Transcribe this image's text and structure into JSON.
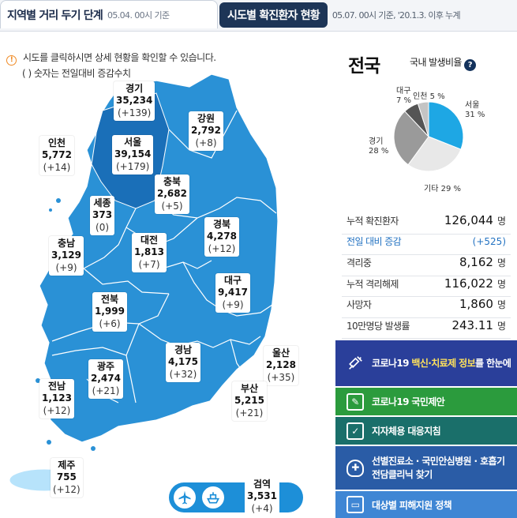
{
  "header": {
    "tab1_title": "지역별 거리 두기 단계",
    "tab1_sub": "05.04. 00시 기준",
    "tab2_title": "시도별 확진환자 현황",
    "tab2_sub": "05.07. 00시 기준, '20.1.3. 이후 누계"
  },
  "map": {
    "notice_icon": "!",
    "notice": "시도를 클릭하시면 상세 현황을 확인할 수 있습니다.",
    "notice2": "( ) 숫자는 전일대비 증감수치",
    "regions": {
      "gyeonggi": {
        "name": "경기",
        "value": "35,234",
        "delta": "(+139)"
      },
      "gangwon": {
        "name": "강원",
        "value": "2,792",
        "delta": "(+8)"
      },
      "incheon": {
        "name": "인천",
        "value": "5,772",
        "delta": "(+14)"
      },
      "seoul": {
        "name": "서울",
        "value": "39,154",
        "delta": "(+179)"
      },
      "chungbuk": {
        "name": "충북",
        "value": "2,682",
        "delta": "(+5)"
      },
      "sejong": {
        "name": "세종",
        "value": "373",
        "delta": "(0)"
      },
      "chungnam": {
        "name": "충남",
        "value": "3,129",
        "delta": "(+9)"
      },
      "daejeon": {
        "name": "대전",
        "value": "1,813",
        "delta": "(+7)"
      },
      "gyeongbuk": {
        "name": "경북",
        "value": "4,278",
        "delta": "(+12)"
      },
      "daegu": {
        "name": "대구",
        "value": "9,417",
        "delta": "(+9)"
      },
      "jeonbuk": {
        "name": "전북",
        "value": "1,999",
        "delta": "(+6)"
      },
      "gyeongnam": {
        "name": "경남",
        "value": "4,175",
        "delta": "(+32)"
      },
      "ulsan": {
        "name": "울산",
        "value": "2,128",
        "delta": "(+35)"
      },
      "gwangju": {
        "name": "광주",
        "value": "2,474",
        "delta": "(+21)"
      },
      "jeonnam": {
        "name": "전남",
        "value": "1,123",
        "delta": "(+12)"
      },
      "busan": {
        "name": "부산",
        "value": "5,215",
        "delta": "(+21)"
      },
      "jeju": {
        "name": "제주",
        "value": "755",
        "delta": "(+12)"
      },
      "quarantine": {
        "name": "검역",
        "value": "3,531",
        "delta": "(+4)"
      }
    },
    "transport_icons": [
      "airplane-icon",
      "ship-icon"
    ]
  },
  "national": {
    "title": "전국",
    "subtitle": "국내 발생비율",
    "help": "?",
    "pie": [
      {
        "label": "서울",
        "pct": "31 %",
        "value": 31,
        "color": "#1ea7e4"
      },
      {
        "label": "기타",
        "pct": "29 %",
        "value": 29,
        "color": "#e8e8e8"
      },
      {
        "label": "경기",
        "pct": "28 %",
        "value": 28,
        "color": "#9a9a9a"
      },
      {
        "label": "대구",
        "pct": "7 %",
        "value": 7,
        "color": "#555555"
      },
      {
        "label": "인천",
        "pct": "5 %",
        "value": 5,
        "color": "#c4c4c4"
      }
    ],
    "stats": [
      {
        "key": "누적 확진환자",
        "value": "126,044",
        "unit": "명",
        "blue": false
      },
      {
        "key": "전일 대비 증감",
        "value": "(+525)",
        "unit": "",
        "blue": true
      },
      {
        "key": "격리중",
        "value": "8,162",
        "unit": "명",
        "blue": false
      },
      {
        "key": "누적 격리해제",
        "value": "116,022",
        "unit": "명",
        "blue": false
      },
      {
        "key": "사망자",
        "value": "1,860",
        "unit": "명",
        "blue": false
      },
      {
        "key": "10만명당 발생률",
        "value": "243.11",
        "unit": "명",
        "blue": false
      }
    ]
  },
  "buttons": {
    "b1_pre": "코로나19 ",
    "b1_hl": "백신·치료제 정보",
    "b1_post": "를 한눈에",
    "b2": "코로나19 국민제안",
    "b3": "지자체용 대응지침",
    "b4": "선별진료소 · 국민안심병원 · 호흡기전담클리닉 찾기",
    "b5": "대상별 피해지원 정책",
    "b2_icon": "✎",
    "b3_icon": "✓",
    "b4_icon": "✚",
    "b5_icon": "▭"
  }
}
